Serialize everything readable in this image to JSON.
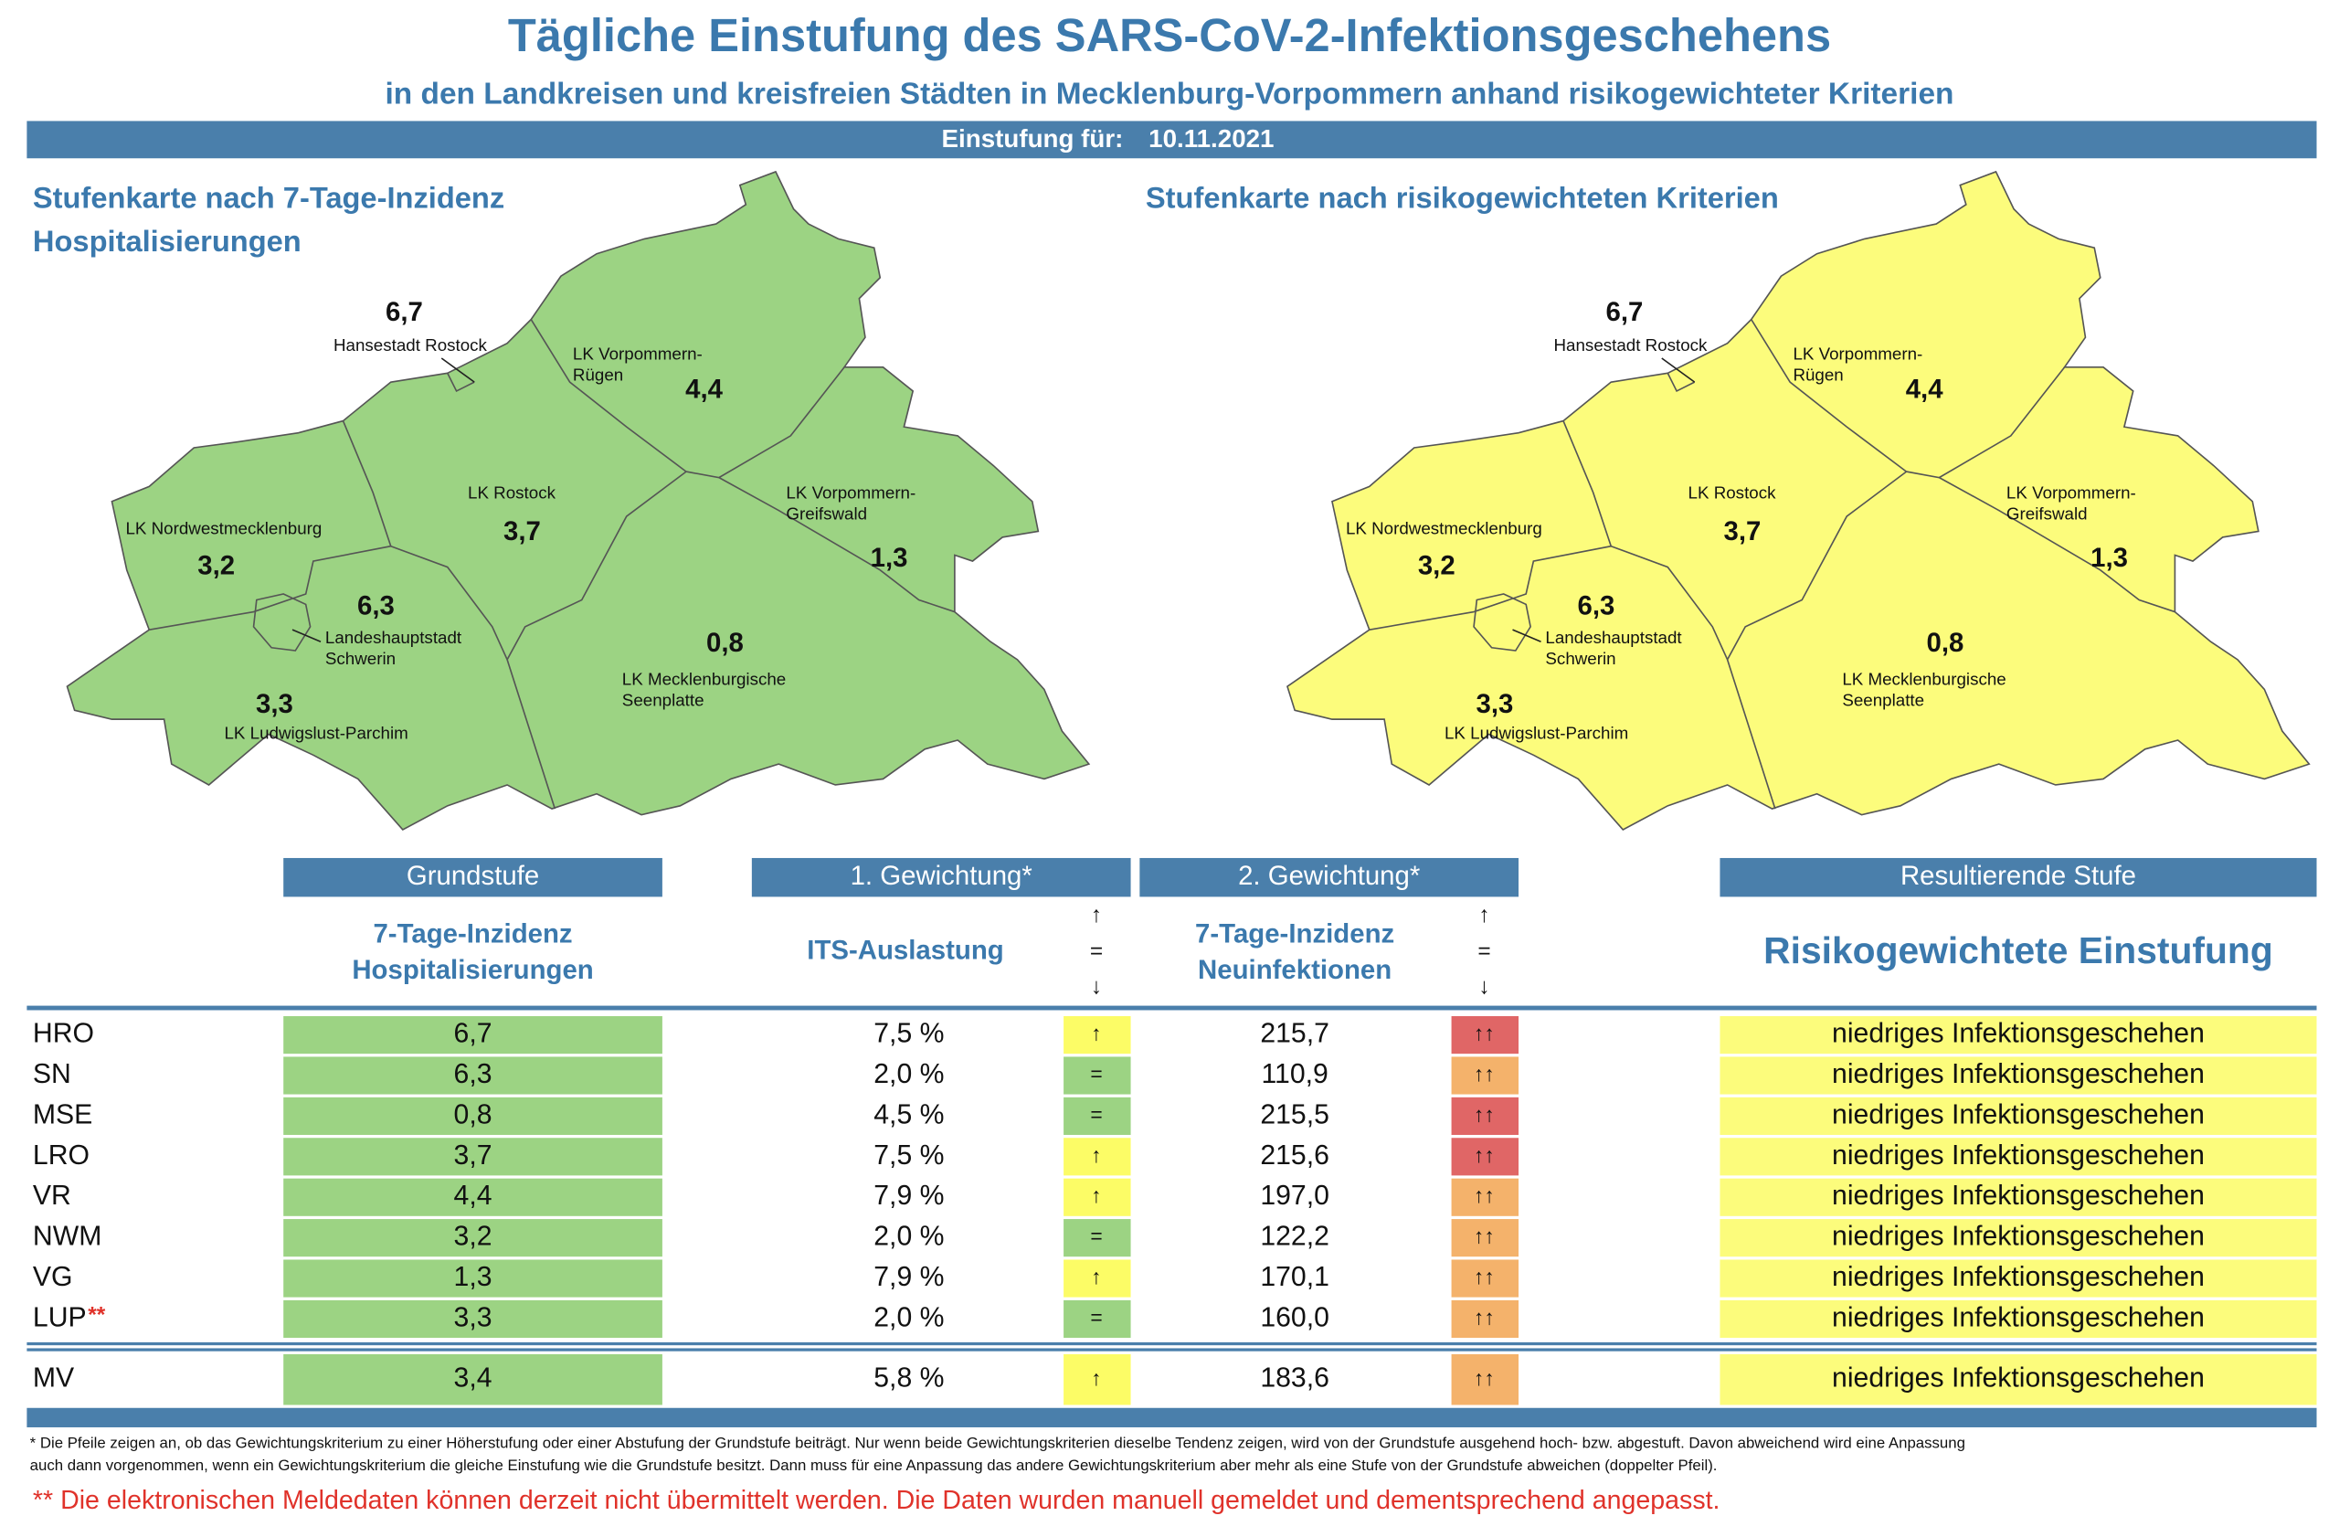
{
  "header": {
    "title": "Tägliche Einstufung des SARS-CoV-2-Infektionsgeschehens",
    "subtitle": "in den Landkreisen und kreisfreien Städten in Mecklenburg-Vorpommern anhand risikogewichteter Kriterien",
    "date_label": "Einstufung für:",
    "date": "10.11.2021"
  },
  "maps": [
    {
      "title": [
        "Stufenkarte nach 7-Tage-Inzidenz",
        "Hospitalisierungen"
      ],
      "color": "#9cd383",
      "regions": [
        {
          "name": [
            "Hansestadt Rostock"
          ],
          "value": "6,7"
        },
        {
          "name": [
            "LK Vorpommern-",
            "Rügen"
          ],
          "value": "4,4"
        },
        {
          "name": [
            "LK Rostock"
          ],
          "value": "3,7"
        },
        {
          "name": [
            "LK Vorpommern-",
            "Greifswald"
          ],
          "value": "1,3"
        },
        {
          "name": [
            "LK Nordwestmecklenburg"
          ],
          "value": "3,2"
        },
        {
          "name": [
            "Landeshauptstadt",
            "Schwerin"
          ],
          "value": "6,3"
        },
        {
          "name": [
            "LK Mecklenburgische",
            "Seenplatte"
          ],
          "value": "0,8"
        },
        {
          "name": [
            "LK Ludwigslust-Parchim"
          ],
          "value": "3,3"
        }
      ]
    },
    {
      "title": [
        "Stufenkarte nach risikogewichteten Kriterien"
      ],
      "color": "#fcfc7c",
      "regions": [
        {
          "name": [
            "Hansestadt Rostock"
          ],
          "value": "6,7"
        },
        {
          "name": [
            "LK Vorpommern-",
            "Rügen"
          ],
          "value": "4,4"
        },
        {
          "name": [
            "LK Rostock"
          ],
          "value": "3,7"
        },
        {
          "name": [
            "LK Vorpommern-",
            "Greifswald"
          ],
          "value": "1,3"
        },
        {
          "name": [
            "LK Nordwestmecklenburg"
          ],
          "value": "3,2"
        },
        {
          "name": [
            "Landeshauptstadt",
            "Schwerin"
          ],
          "value": "6,3"
        },
        {
          "name": [
            "LK Mecklenburgische",
            "Seenplatte"
          ],
          "value": "0,8"
        },
        {
          "name": [
            "LK Ludwigslust-Parchim"
          ],
          "value": "3,3"
        }
      ]
    }
  ],
  "table": {
    "groups": [
      "Grundstufe",
      "1. Gewichtung*",
      "2. Gewichtung*",
      "Resultierende Stufe"
    ],
    "hosp_header": [
      "7-Tage-Inzidenz",
      "Hospitalisierungen"
    ],
    "its_header": "ITS-Auslastung",
    "trend_legend": [
      "↑",
      "=",
      "↓"
    ],
    "incidence_header": [
      "7-Tage-Inzidenz",
      "Neuinfektionen"
    ],
    "result_header": "Risikogewichtete Einstufung",
    "hosp_color": "#9cd383",
    "result_color": "#fcfc7c",
    "rows": [
      {
        "code": "HRO",
        "hosp": "6,7",
        "its": "7,5 %",
        "its_trend": "↑",
        "its_color": "#fcfc66",
        "incidence": "215,7",
        "incidence_trend": "↑↑",
        "incidence_color": "#e06666",
        "result": "niedriges Infektionsgeschehen"
      },
      {
        "code": "SN",
        "hosp": "6,3",
        "its": "2,0 %",
        "its_trend": "=",
        "its_color": "#9cd383",
        "incidence": "110,9",
        "incidence_trend": "↑↑",
        "incidence_color": "#f4b26b",
        "result": "niedriges Infektionsgeschehen"
      },
      {
        "code": "MSE",
        "hosp": "0,8",
        "its": "4,5 %",
        "its_trend": "=",
        "its_color": "#9cd383",
        "incidence": "215,5",
        "incidence_trend": "↑↑",
        "incidence_color": "#e06666",
        "result": "niedriges Infektionsgeschehen"
      },
      {
        "code": "LRO",
        "hosp": "3,7",
        "its": "7,5 %",
        "its_trend": "↑",
        "its_color": "#fcfc66",
        "incidence": "215,6",
        "incidence_trend": "↑↑",
        "incidence_color": "#e06666",
        "result": "niedriges Infektionsgeschehen"
      },
      {
        "code": "VR",
        "hosp": "4,4",
        "its": "7,9 %",
        "its_trend": "↑",
        "its_color": "#fcfc66",
        "incidence": "197,0",
        "incidence_trend": "↑↑",
        "incidence_color": "#f4b26b",
        "result": "niedriges Infektionsgeschehen"
      },
      {
        "code": "NWM",
        "hosp": "3,2",
        "its": "2,0 %",
        "its_trend": "=",
        "its_color": "#9cd383",
        "incidence": "122,2",
        "incidence_trend": "↑↑",
        "incidence_color": "#f4b26b",
        "result": "niedriges Infektionsgeschehen"
      },
      {
        "code": "VG",
        "hosp": "1,3",
        "its": "7,9 %",
        "its_trend": "↑",
        "its_color": "#fcfc66",
        "incidence": "170,1",
        "incidence_trend": "↑↑",
        "incidence_color": "#f4b26b",
        "result": "niedriges Infektionsgeschehen"
      },
      {
        "code": "LUP",
        "code_note": "**",
        "hosp": "3,3",
        "its": "2,0 %",
        "its_trend": "=",
        "its_color": "#9cd383",
        "incidence": "160,0",
        "incidence_trend": "↑↑",
        "incidence_color": "#f4b26b",
        "result": "niedriges Infektionsgeschehen"
      }
    ],
    "total": {
      "code": "MV",
      "hosp": "3,4",
      "its": "5,8 %",
      "its_trend": "↑",
      "its_color": "#fcfc66",
      "incidence": "183,6",
      "incidence_trend": "↑↑",
      "incidence_color": "#f4b26b",
      "result": "niedriges Infektionsgeschehen"
    }
  },
  "footnote": [
    "* Die Pfeile zeigen an, ob das Gewichtungskriterium zu einer Höherstufung oder einer Abstufung der Grundstufe beiträgt. Nur wenn beide Gewichtungskriterien dieselbe Tendenz zeigen, wird von der Grundstufe ausgehend hoch- bzw. abgestuft.  Davon abweichend wird eine Anpassung",
    "auch dann vorgenommen, wenn ein Gewichtungskriterium die gleiche Einstufung wie die Grundstufe besitzt. Dann muss für eine Anpassung das andere Gewichtungskriterium aber mehr als eine Stufe von der Grundstufe abweichen (doppelter Pfeil)."
  ],
  "note": "** Die elektronischen Meldedaten können derzeit nicht übermittelt werden. Die Daten wurden manuell gemeldet und dementsprechend angepasst."
}
